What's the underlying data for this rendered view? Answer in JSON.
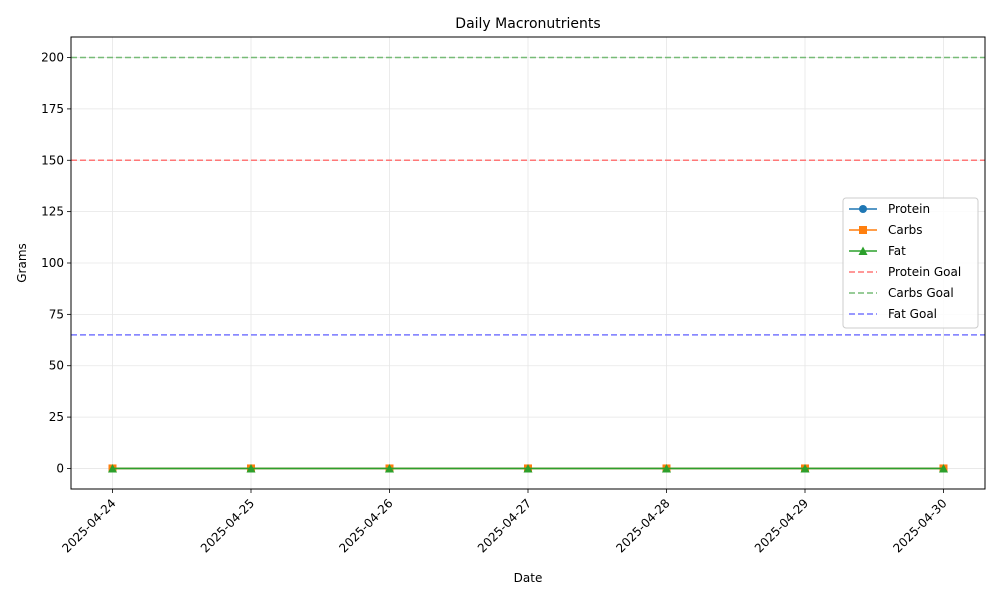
{
  "chart_data": {
    "type": "line",
    "title": "Daily Macronutrients",
    "xlabel": "Date",
    "ylabel": "Grams",
    "x": [
      "2025-04-24",
      "2025-04-25",
      "2025-04-26",
      "2025-04-27",
      "2025-04-28",
      "2025-04-29",
      "2025-04-30"
    ],
    "ylim": [
      -10,
      210
    ],
    "yticks": [
      0,
      25,
      50,
      75,
      100,
      125,
      150,
      175,
      200
    ],
    "grid": true,
    "legend_position": "center-right",
    "series": [
      {
        "name": "Protein",
        "values": [
          0,
          0,
          0,
          0,
          0,
          0,
          0
        ],
        "color": "#1f77b4",
        "marker": "circle"
      },
      {
        "name": "Carbs",
        "values": [
          0,
          0,
          0,
          0,
          0,
          0,
          0
        ],
        "color": "#ff7f0e",
        "marker": "square"
      },
      {
        "name": "Fat",
        "values": [
          0,
          0,
          0,
          0,
          0,
          0,
          0
        ],
        "color": "#2ca02c",
        "marker": "triangle"
      }
    ],
    "goal_lines": [
      {
        "name": "Protein Goal",
        "value": 150,
        "color": "#ff7777"
      },
      {
        "name": "Carbs Goal",
        "value": 200,
        "color": "#77bb77"
      },
      {
        "name": "Fat Goal",
        "value": 65,
        "color": "#7777ff"
      }
    ]
  }
}
